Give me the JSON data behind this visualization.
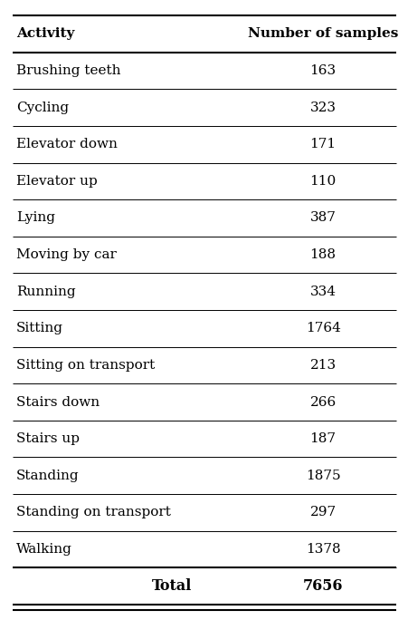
{
  "col1_header": "Activity",
  "col2_header": "Number of samples",
  "rows": [
    [
      "Brushing teeth",
      "163"
    ],
    [
      "Cycling",
      "323"
    ],
    [
      "Elevator down",
      "171"
    ],
    [
      "Elevator up",
      "110"
    ],
    [
      "Lying",
      "387"
    ],
    [
      "Moving by car",
      "188"
    ],
    [
      "Running",
      "334"
    ],
    [
      "Sitting",
      "1764"
    ],
    [
      "Sitting on transport",
      "213"
    ],
    [
      "Stairs down",
      "266"
    ],
    [
      "Stairs up",
      "187"
    ],
    [
      "Standing",
      "1875"
    ],
    [
      "Standing on transport",
      "297"
    ],
    [
      "Walking",
      "1378"
    ]
  ],
  "total_label": "Total",
  "total_value": "7656",
  "bg_color": "#ffffff",
  "text_color": "#000000",
  "header_fontsize": 11,
  "body_fontsize": 11,
  "figwidth": 4.52,
  "figheight": 6.84,
  "dpi": 100
}
